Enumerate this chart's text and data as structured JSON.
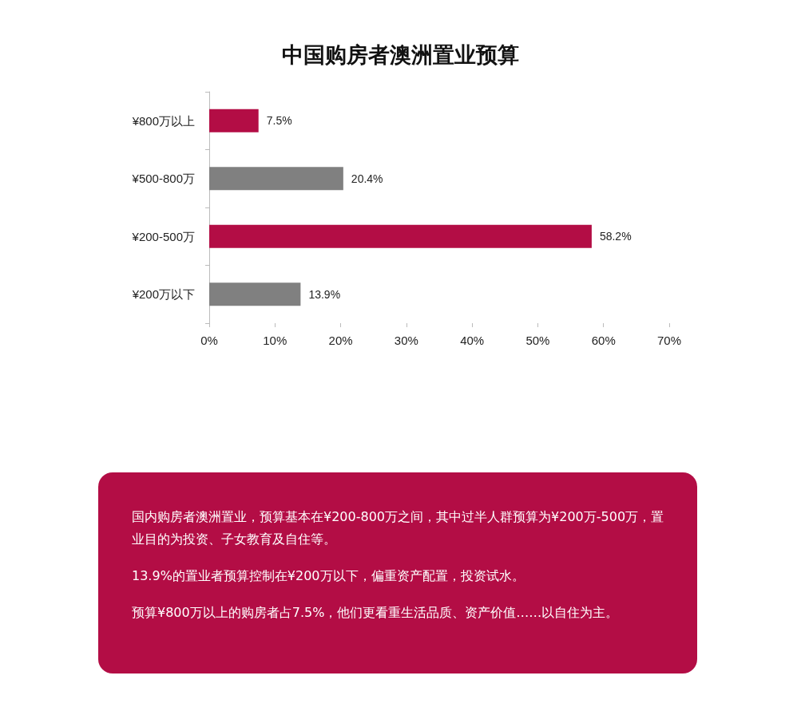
{
  "chart_data": {
    "type": "bar",
    "orientation": "horizontal",
    "title": "中国购房者澳洲置业预算",
    "categories": [
      "¥800万以上",
      "¥500-800万",
      "¥200-500万",
      "¥200万以下"
    ],
    "values": [
      7.5,
      20.4,
      58.2,
      13.9
    ],
    "colors": [
      "#b30d45",
      "#808080",
      "#b30d45",
      "#808080"
    ],
    "value_labels": [
      "7.5%",
      "20.4%",
      "58.2%",
      "13.9%"
    ],
    "xlim": [
      0,
      70
    ],
    "xticks": [
      {
        "value": 0,
        "label": "0%"
      },
      {
        "value": 10,
        "label": "10%"
      },
      {
        "value": 20,
        "label": "20%"
      },
      {
        "value": 30,
        "label": "30%"
      },
      {
        "value": 40,
        "label": "40%"
      },
      {
        "value": 50,
        "label": "50%"
      },
      {
        "value": 60,
        "label": "60%"
      },
      {
        "value": 70,
        "label": "70%"
      }
    ],
    "annotations": [
      "国内购房者澳洲置业，预算基本在¥200-800万之间，其中过半人群预算为¥200万-500万，置业目的为投资、子女教育及自住等。",
      "13.9%的置业者预算控制在¥200万以下，偏重资产配置，投资试水。",
      "预算¥800万以上的购房者占7.5%，他们更看重生活品质、资产价值……以自住为主。"
    ]
  }
}
